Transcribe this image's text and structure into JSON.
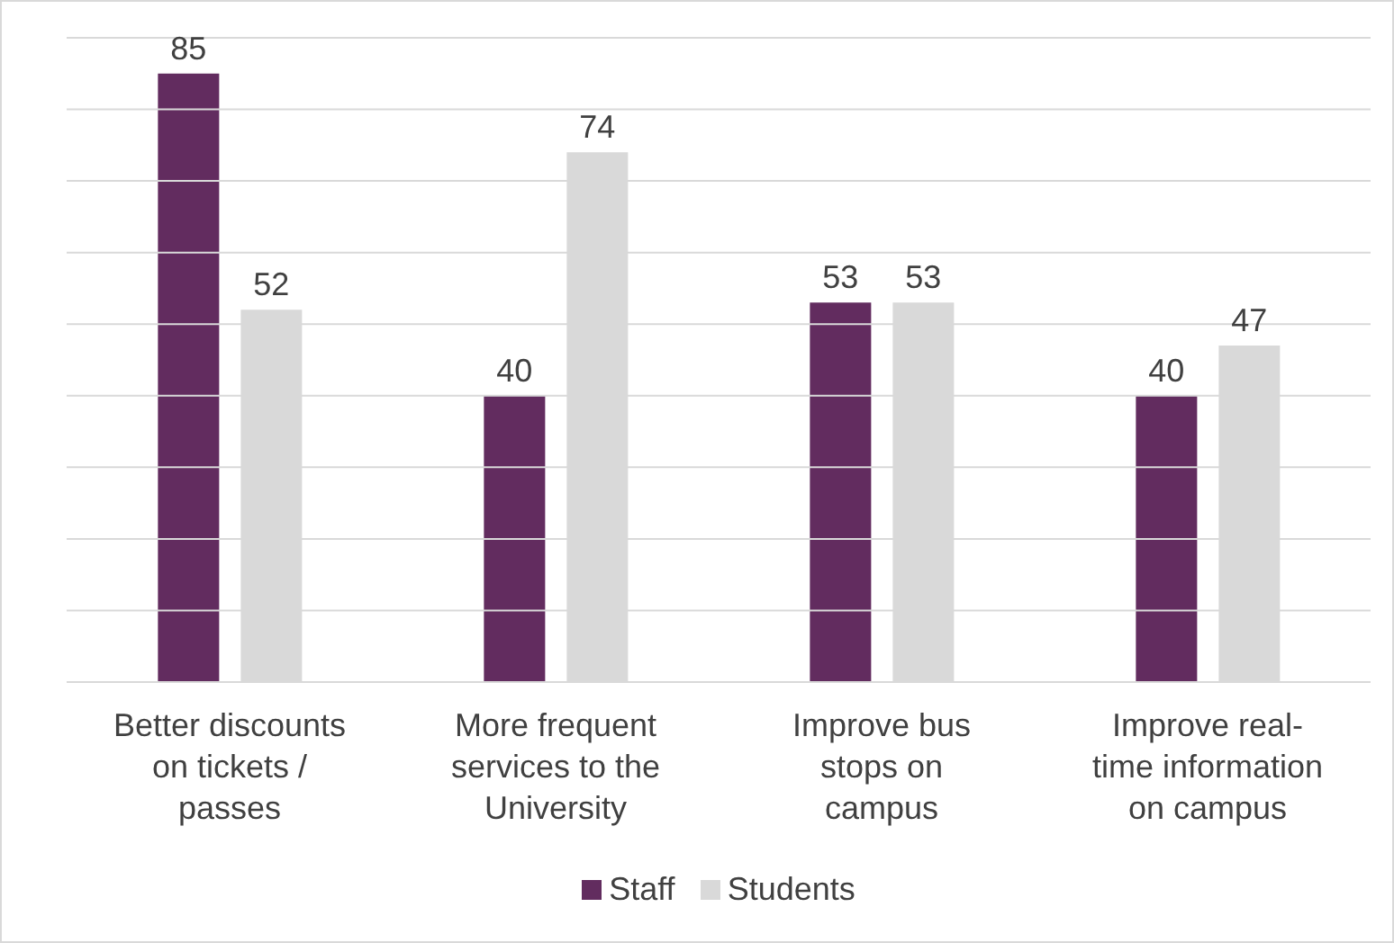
{
  "chart_data": {
    "type": "bar",
    "categories": [
      "Better discounts\non tickets /\npasses",
      "More frequent\nservices to the\nUniversity",
      "Improve bus\nstops on\ncampus",
      "Improve real-\ntime information\non campus"
    ],
    "series": [
      {
        "name": "Staff",
        "color": "#622c5f",
        "values": [
          85,
          40,
          53,
          40
        ]
      },
      {
        "name": "Students",
        "color": "#d9d9d9",
        "values": [
          52,
          74,
          53,
          47
        ]
      }
    ],
    "ylim": [
      0,
      90
    ],
    "yticks": [
      {
        "value": 0,
        "label": null
      },
      {
        "value": 10,
        "label": null
      },
      {
        "value": 20,
        "label": null
      },
      {
        "value": 30,
        "label": null
      },
      {
        "value": 40,
        "label": null
      },
      {
        "value": 50,
        "label": null
      },
      {
        "value": 60,
        "label": null
      },
      {
        "value": 70,
        "label": null
      },
      {
        "value": 80,
        "label": null
      },
      {
        "value": 90,
        "label": null
      }
    ],
    "tick_labels": "x",
    "grid": "y",
    "data_labels": true,
    "legend": "bottom"
  }
}
